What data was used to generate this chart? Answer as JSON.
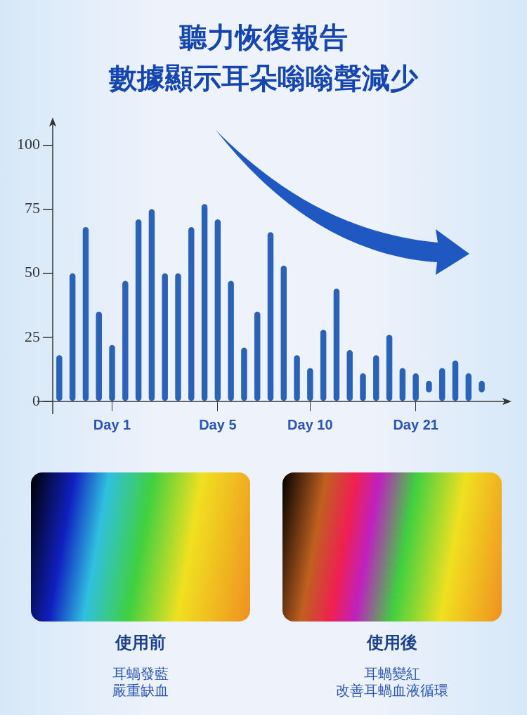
{
  "chart_data": {
    "type": "bar",
    "title": "聽力恢復報告",
    "subtitle": "數據顯示耳朵嗡嗡聲減少",
    "categories": [
      null,
      null,
      null,
      null,
      "Day 1",
      null,
      null,
      null,
      null,
      null,
      null,
      null,
      "Day 5",
      null,
      null,
      null,
      null,
      null,
      null,
      "Day 10",
      null,
      null,
      null,
      null,
      null,
      null,
      null,
      "Day 21",
      null,
      null,
      null,
      null,
      null
    ],
    "values": [
      18,
      50,
      68,
      35,
      22,
      47,
      71,
      75,
      50,
      50,
      68,
      77,
      71,
      47,
      21,
      35,
      66,
      53,
      18,
      13,
      28,
      44,
      20,
      11,
      18,
      26,
      13,
      11,
      4.5,
      13,
      16,
      11,
      4.5
    ],
    "base": [
      0,
      0,
      0,
      0,
      0,
      0,
      0,
      0,
      0,
      0,
      0,
      0,
      0,
      0,
      0,
      0,
      0,
      0,
      0,
      0,
      0,
      0,
      0,
      0,
      0,
      0,
      0,
      0,
      3.5,
      0,
      0,
      0,
      3.5
    ],
    "color": "#2a62b8",
    "ylim": [
      0,
      108
    ],
    "yticks": [
      0,
      25,
      50,
      75,
      100
    ],
    "grid": false,
    "legend": false,
    "annotations": [
      "使用前",
      "耳蝸發藍",
      "嚴重缺血",
      "使用後",
      "耳蝸變紅",
      "改善耳蝸血液循環"
    ]
  }
}
